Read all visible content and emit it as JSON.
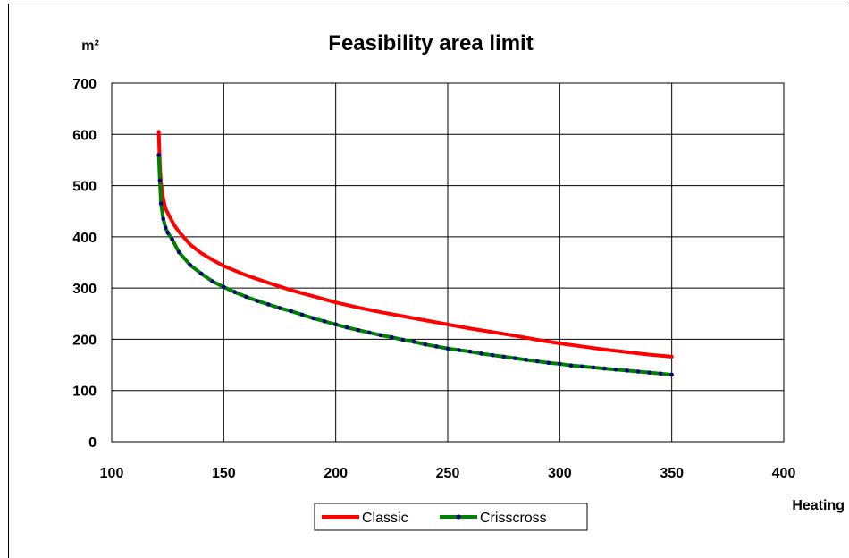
{
  "chart_data": {
    "type": "line",
    "title": "Feasibility area limit",
    "ylabel": "m²",
    "xlabel": "Heating",
    "xlim": [
      100,
      400
    ],
    "ylim": [
      0,
      700
    ],
    "x_ticks": [
      100,
      150,
      200,
      250,
      300,
      350,
      400
    ],
    "y_ticks": [
      0,
      100,
      200,
      300,
      400,
      500,
      600,
      700
    ],
    "grid": true,
    "legend_position": "bottom-center",
    "series": [
      {
        "name": "Classic",
        "color": "#ff0000",
        "marker": "none",
        "points": [
          [
            121,
            605
          ],
          [
            121.5,
            540
          ],
          [
            122,
            505
          ],
          [
            123,
            475
          ],
          [
            124,
            455
          ],
          [
            126,
            438
          ],
          [
            128,
            422
          ],
          [
            130,
            410
          ],
          [
            135,
            385
          ],
          [
            140,
            368
          ],
          [
            145,
            355
          ],
          [
            150,
            343
          ],
          [
            160,
            325
          ],
          [
            170,
            310
          ],
          [
            180,
            296
          ],
          [
            190,
            284
          ],
          [
            200,
            272
          ],
          [
            210,
            262
          ],
          [
            220,
            253
          ],
          [
            230,
            245
          ],
          [
            240,
            237
          ],
          [
            250,
            229
          ],
          [
            260,
            221
          ],
          [
            270,
            214
          ],
          [
            280,
            207
          ],
          [
            290,
            199
          ],
          [
            300,
            192
          ],
          [
            310,
            186
          ],
          [
            320,
            180
          ],
          [
            330,
            175
          ],
          [
            340,
            170
          ],
          [
            350,
            166
          ]
        ]
      },
      {
        "name": "Crisscross",
        "color": "#008000",
        "marker_color": "#000080",
        "marker": "dot",
        "points": [
          [
            121,
            560
          ],
          [
            121.5,
            510
          ],
          [
            122,
            465
          ],
          [
            123,
            435
          ],
          [
            124,
            418
          ],
          [
            125,
            408
          ],
          [
            127,
            395
          ],
          [
            130,
            370
          ],
          [
            135,
            345
          ],
          [
            140,
            328
          ],
          [
            145,
            313
          ],
          [
            150,
            302
          ],
          [
            155,
            292
          ],
          [
            160,
            283
          ],
          [
            165,
            275
          ],
          [
            170,
            268
          ],
          [
            175,
            261
          ],
          [
            180,
            255
          ],
          [
            185,
            248
          ],
          [
            190,
            241
          ],
          [
            195,
            235
          ],
          [
            200,
            229
          ],
          [
            205,
            223
          ],
          [
            210,
            218
          ],
          [
            215,
            213
          ],
          [
            220,
            208
          ],
          [
            225,
            204
          ],
          [
            230,
            199
          ],
          [
            235,
            195
          ],
          [
            240,
            190
          ],
          [
            245,
            186
          ],
          [
            250,
            182
          ],
          [
            255,
            179
          ],
          [
            260,
            176
          ],
          [
            265,
            172
          ],
          [
            270,
            169
          ],
          [
            275,
            166
          ],
          [
            280,
            163
          ],
          [
            285,
            160
          ],
          [
            290,
            157
          ],
          [
            295,
            154
          ],
          [
            300,
            152
          ],
          [
            305,
            149
          ],
          [
            310,
            147
          ],
          [
            315,
            145
          ],
          [
            320,
            143
          ],
          [
            325,
            141
          ],
          [
            330,
            139
          ],
          [
            335,
            137
          ],
          [
            340,
            135
          ],
          [
            345,
            133
          ],
          [
            350,
            131
          ]
        ]
      }
    ]
  }
}
